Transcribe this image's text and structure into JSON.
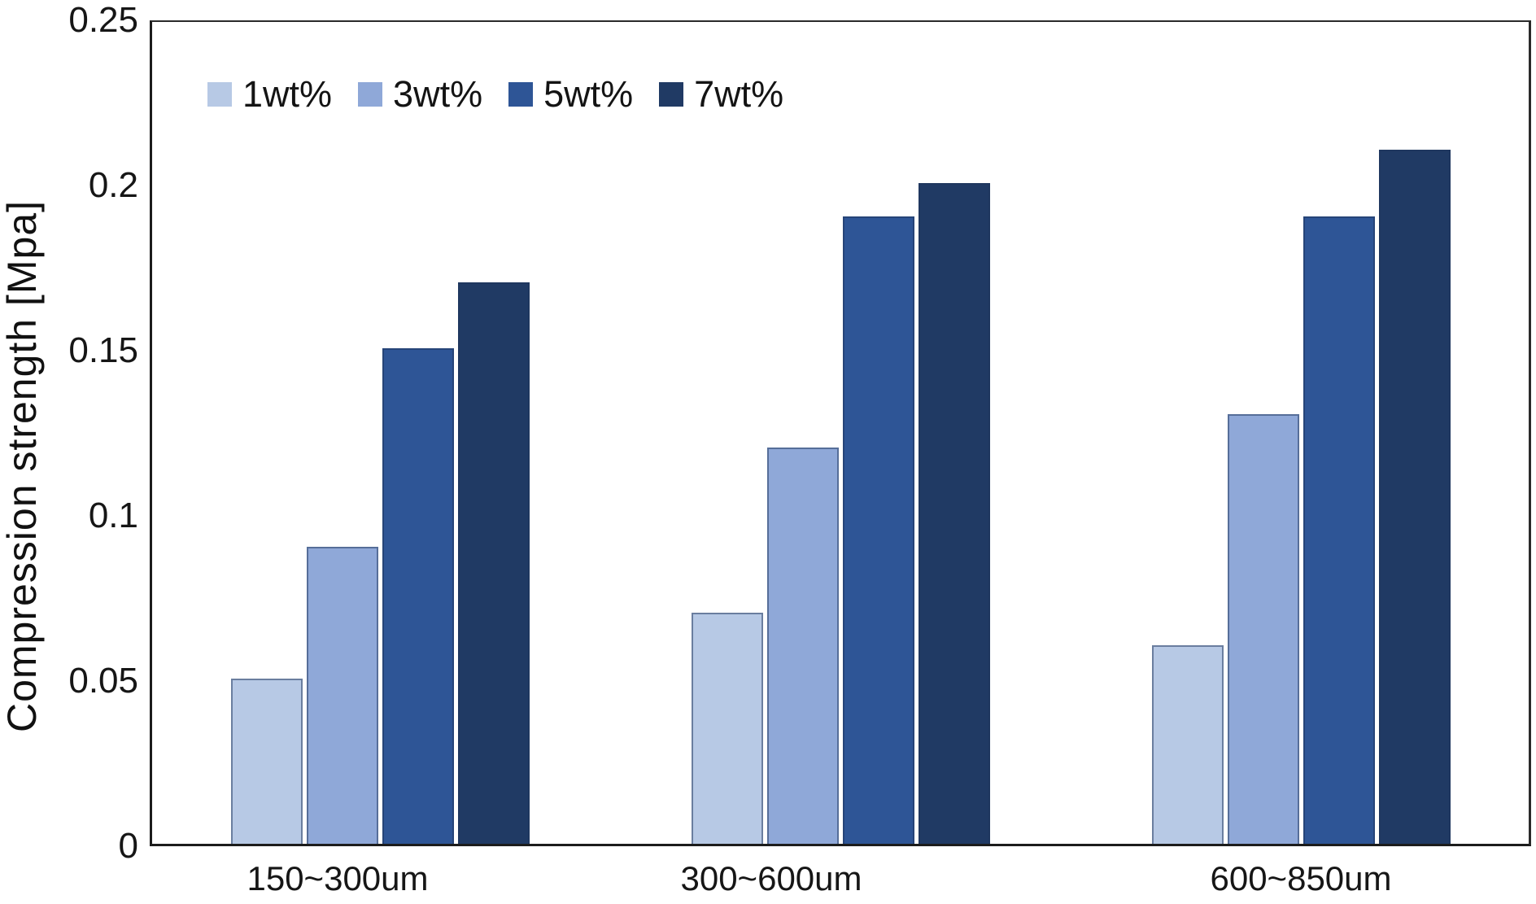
{
  "chart_data": {
    "type": "bar",
    "title": "",
    "ylabel": "Compression strength [Mpa]",
    "xlabel": "",
    "categories": [
      "150~300um",
      "300~600um",
      "600~850um"
    ],
    "series": [
      {
        "name": "1wt%",
        "color": "#b7c9e5",
        "values": [
          0.05,
          0.07,
          0.06
        ]
      },
      {
        "name": "3wt%",
        "color": "#8fa8d8",
        "values": [
          0.09,
          0.12,
          0.13
        ]
      },
      {
        "name": "5wt%",
        "color": "#2e5596",
        "values": [
          0.15,
          0.19,
          0.19
        ]
      },
      {
        "name": "7wt%",
        "color": "#203a64",
        "values": [
          0.17,
          0.2,
          0.21
        ]
      }
    ],
    "ylim": [
      0,
      0.25
    ],
    "yticks": [
      0,
      0.05,
      0.1,
      0.15,
      0.2,
      0.25
    ],
    "ytick_labels": [
      "0",
      "0.05",
      "0.1",
      "0.15",
      "0.2",
      "0.25"
    ],
    "grid": false,
    "legend_position": "top-left-inside"
  }
}
